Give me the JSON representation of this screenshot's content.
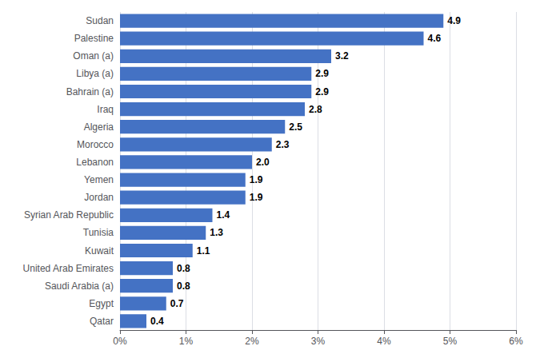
{
  "chart_data": {
    "type": "bar",
    "orientation": "horizontal",
    "categories": [
      "Sudan",
      "Palestine",
      "Oman (a)",
      "Libya (a)",
      "Bahrain (a)",
      "Iraq",
      "Algeria",
      "Morocco",
      "Lebanon",
      "Yemen",
      "Jordan",
      "Syrian Arab Republic",
      "Tunisia",
      "Kuwait",
      "United Arab Emirates",
      "Saudi Arabia (a)",
      "Egypt",
      "Qatar"
    ],
    "values": [
      4.9,
      4.6,
      3.2,
      2.9,
      2.9,
      2.8,
      2.5,
      2.3,
      2.0,
      1.9,
      1.9,
      1.4,
      1.3,
      1.1,
      0.8,
      0.8,
      0.7,
      0.4
    ],
    "value_labels": [
      "4.9",
      "4.6",
      "3.2",
      "2.9",
      "2.9",
      "2.8",
      "2.5",
      "2.3",
      "2.0",
      "1.9",
      "1.9",
      "1.4",
      "1.3",
      "1.1",
      "0.8",
      "0.8",
      "0.7",
      "0.4"
    ],
    "data_labels": true,
    "color": "#4472C4",
    "xlim": [
      0,
      6
    ],
    "xticks": [
      {
        "value": 0,
        "label": "0%"
      },
      {
        "value": 1,
        "label": "1%"
      },
      {
        "value": 2,
        "label": "2%"
      },
      {
        "value": 3,
        "label": "3%"
      },
      {
        "value": 4,
        "label": "4%"
      },
      {
        "value": 5,
        "label": "5%"
      },
      {
        "value": 6,
        "label": "6%"
      }
    ],
    "grid": true
  }
}
